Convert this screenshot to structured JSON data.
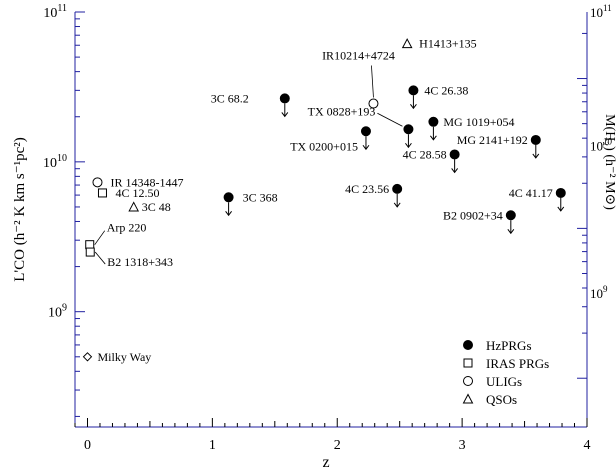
{
  "chart_data": {
    "type": "scatter",
    "xlabel": "z",
    "ylabel_left": "L'CO (h⁻² K km s⁻¹pc²)",
    "ylabel_right": "M(H₂) (h⁻² M⊙)",
    "xlim": [
      -0.1,
      4.0
    ],
    "ylim": [
      170000000.0,
      100000000000.0
    ],
    "yscale": "log",
    "x_ticks": [
      "0",
      "1",
      "2",
      "3",
      "4"
    ],
    "y_ticks_left": [
      {
        "exp": "11",
        "value": 100000000000.0
      },
      {
        "exp": "10",
        "value": 10000000000.0
      },
      {
        "exp": "9",
        "value": 1000000000.0
      }
    ],
    "y_ticks_right": [
      {
        "exp": "11",
        "value": 27800000000.0
      },
      {
        "exp": "10",
        "value": 3580000000.0
      },
      {
        "exp": "9",
        "value": 370000000.0
      }
    ],
    "legend_position": "bottom-right",
    "series": [
      {
        "name": "HzPRGs",
        "marker": "filled-circle"
      },
      {
        "name": "IRAS PRGs",
        "marker": "open-square"
      },
      {
        "name": "ULIGs",
        "marker": "open-circle"
      },
      {
        "name": "QSOs",
        "marker": "open-triangle"
      }
    ],
    "points": [
      {
        "label": "3C 368",
        "x": 1.13,
        "y": 5800000000.0,
        "marker": "filled-circle",
        "upper_limit": true
      },
      {
        "label": "3C 68.2",
        "x": 1.58,
        "y": 26500000000.0,
        "marker": "filled-circle",
        "upper_limit": true
      },
      {
        "label": "TX 0200+015",
        "x": 2.23,
        "y": 16000000000.0,
        "marker": "filled-circle",
        "upper_limit": true
      },
      {
        "label": "4C 23.56",
        "x": 2.48,
        "y": 6600000000.0,
        "marker": "filled-circle",
        "upper_limit": true
      },
      {
        "label": "TX 0828+193",
        "x": 2.57,
        "y": 16500000000.0,
        "marker": "filled-circle",
        "upper_limit": true
      },
      {
        "label": "4C 26.38",
        "x": 2.61,
        "y": 30000000000.0,
        "marker": "filled-circle",
        "upper_limit": true
      },
      {
        "label": "MG 1019+054",
        "x": 2.77,
        "y": 18500000000.0,
        "marker": "filled-circle",
        "upper_limit": true
      },
      {
        "label": "4C 28.58",
        "x": 2.94,
        "y": 11200000000.0,
        "marker": "filled-circle",
        "upper_limit": true
      },
      {
        "label": "B2 0902+34",
        "x": 3.39,
        "y": 4400000000.0,
        "marker": "filled-circle",
        "upper_limit": true
      },
      {
        "label": "MG 2141+192",
        "x": 3.59,
        "y": 14000000000.0,
        "marker": "filled-circle",
        "upper_limit": true
      },
      {
        "label": "4C 41.17",
        "x": 3.79,
        "y": 6200000000.0,
        "marker": "filled-circle",
        "upper_limit": true
      },
      {
        "label": "4C 12.50",
        "x": 0.12,
        "y": 6200000000.0,
        "marker": "open-square",
        "upper_limit": false
      },
      {
        "label": "Arp 220",
        "x": 0.018,
        "y": 2800000000.0,
        "marker": "open-square",
        "upper_limit": false
      },
      {
        "label": "B2 1318+343",
        "x": 0.022,
        "y": 2500000000.0,
        "marker": "open-square",
        "upper_limit": false
      },
      {
        "label": "IR 14348-1447",
        "x": 0.08,
        "y": 7300000000.0,
        "marker": "open-circle",
        "upper_limit": false
      },
      {
        "label": "IR10214+4724",
        "x": 2.29,
        "y": 24500000000.0,
        "marker": "open-circle",
        "upper_limit": false
      },
      {
        "label": "3C 48",
        "x": 0.37,
        "y": 5000000000.0,
        "marker": "open-triangle",
        "upper_limit": false
      },
      {
        "label": "H1413+135",
        "x": 2.56,
        "y": 61500000000.0,
        "marker": "open-triangle",
        "upper_limit": false
      },
      {
        "label": "Milky Way",
        "x": 0.0,
        "y": 500000000.0,
        "marker": "open-diamond",
        "upper_limit": false
      }
    ]
  }
}
